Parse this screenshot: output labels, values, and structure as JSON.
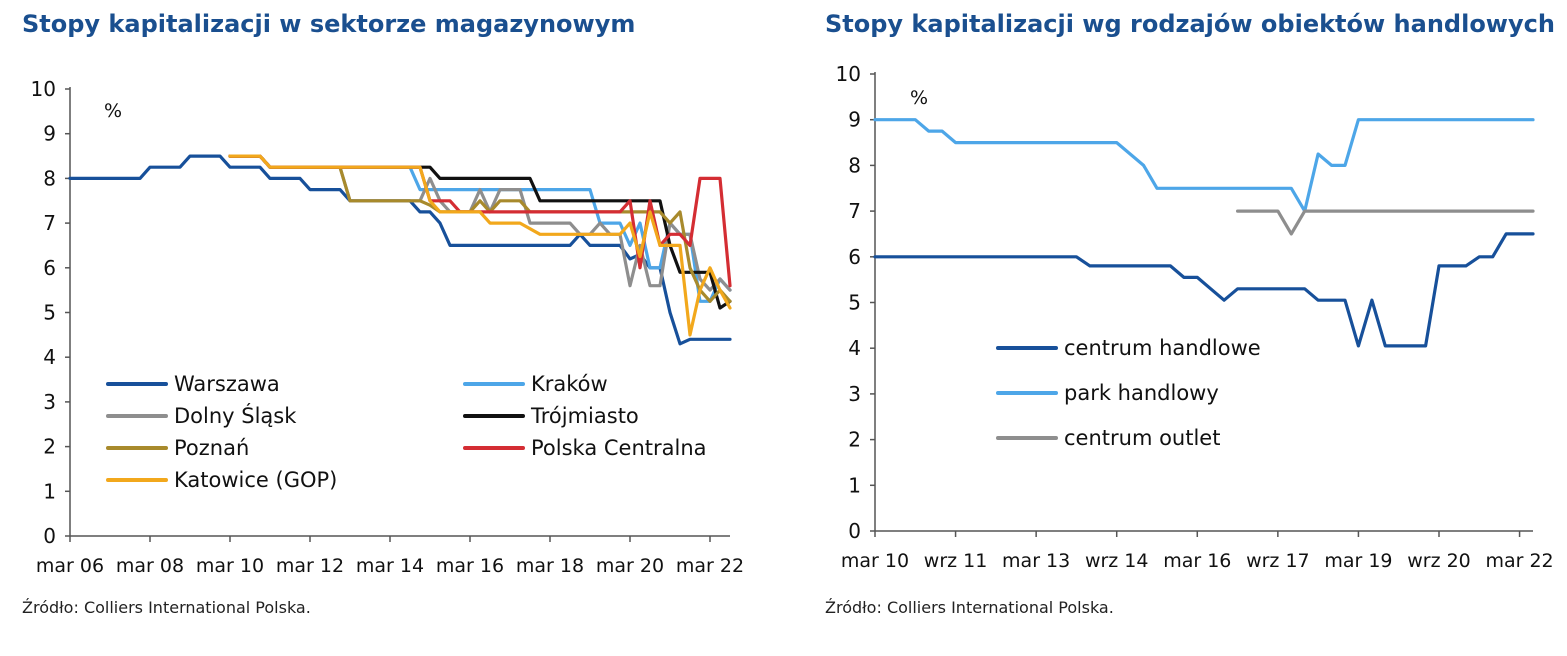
{
  "source_left": "Źródło: Colliers International Polska.",
  "source_right": "Źródło: Colliers International Polska.",
  "chart_data": [
    {
      "type": "line",
      "title": "Stopy kapitalizacji w sektorze magazynowym",
      "unit_label": "%",
      "ylim": [
        0,
        10
      ],
      "y_ticks": [
        0,
        1,
        2,
        3,
        4,
        5,
        6,
        7,
        8,
        9,
        10
      ],
      "x_range": [
        2006.0,
        2022.5
      ],
      "x_ticks": [
        2006,
        2008,
        2010,
        2012,
        2014,
        2016,
        2018,
        2020,
        2022
      ],
      "x_tick_labels": [
        "mar 06",
        "mar 08",
        "mar 10",
        "mar 12",
        "mar 14",
        "mar 16",
        "mar 18",
        "mar 20",
        "mar 22"
      ],
      "legend_position": "bottom-left",
      "series": [
        {
          "name": "Warszawa",
          "color": "#17509a",
          "points": [
            [
              2006.0,
              8.0
            ],
            [
              2007.75,
              8.0
            ],
            [
              2008.0,
              8.25
            ],
            [
              2008.75,
              8.25
            ],
            [
              2009.0,
              8.5
            ],
            [
              2009.75,
              8.5
            ],
            [
              2010.0,
              8.25
            ],
            [
              2010.75,
              8.25
            ],
            [
              2011.0,
              8.0
            ],
            [
              2011.75,
              8.0
            ],
            [
              2012.0,
              7.75
            ],
            [
              2012.75,
              7.75
            ],
            [
              2013.0,
              7.5
            ],
            [
              2014.5,
              7.5
            ],
            [
              2014.75,
              7.25
            ],
            [
              2015.0,
              7.25
            ],
            [
              2015.25,
              7.0
            ],
            [
              2015.5,
              6.5
            ],
            [
              2018.5,
              6.5
            ],
            [
              2018.75,
              6.75
            ],
            [
              2019.0,
              6.5
            ],
            [
              2019.75,
              6.5
            ],
            [
              2020.0,
              6.2
            ],
            [
              2020.25,
              6.3
            ],
            [
              2020.5,
              6.0
            ],
            [
              2020.75,
              6.0
            ],
            [
              2021.0,
              5.0
            ],
            [
              2021.25,
              4.3
            ],
            [
              2021.5,
              4.4
            ],
            [
              2022.5,
              4.4
            ]
          ]
        },
        {
          "name": "Kraków",
          "color": "#4da6e8",
          "points": [
            [
              2010.0,
              8.5
            ],
            [
              2010.75,
              8.5
            ],
            [
              2011.0,
              8.25
            ],
            [
              2014.5,
              8.25
            ],
            [
              2014.75,
              7.75
            ],
            [
              2015.5,
              7.75
            ],
            [
              2015.75,
              7.75
            ],
            [
              2019.0,
              7.75
            ],
            [
              2019.25,
              7.0
            ],
            [
              2019.75,
              7.0
            ],
            [
              2020.0,
              6.5
            ],
            [
              2020.25,
              7.0
            ],
            [
              2020.5,
              6.0
            ],
            [
              2020.75,
              6.0
            ],
            [
              2021.0,
              7.0
            ],
            [
              2021.25,
              6.75
            ],
            [
              2021.5,
              6.75
            ],
            [
              2021.75,
              5.25
            ],
            [
              2022.0,
              5.25
            ],
            [
              2022.25,
              5.75
            ],
            [
              2022.5,
              5.5
            ]
          ]
        },
        {
          "name": "Dolny Śląsk",
          "color": "#8e8e8e",
          "points": [
            [
              2010.0,
              8.5
            ],
            [
              2010.75,
              8.5
            ],
            [
              2011.0,
              8.25
            ],
            [
              2012.75,
              8.25
            ],
            [
              2013.0,
              7.5
            ],
            [
              2014.75,
              7.5
            ],
            [
              2015.0,
              8.0
            ],
            [
              2015.25,
              7.5
            ],
            [
              2015.5,
              7.25
            ],
            [
              2016.0,
              7.25
            ],
            [
              2016.25,
              7.75
            ],
            [
              2016.5,
              7.25
            ],
            [
              2016.75,
              7.75
            ],
            [
              2017.25,
              7.75
            ],
            [
              2017.5,
              7.0
            ],
            [
              2018.5,
              7.0
            ],
            [
              2018.75,
              6.75
            ],
            [
              2019.0,
              6.75
            ],
            [
              2019.25,
              7.0
            ],
            [
              2019.5,
              6.75
            ],
            [
              2019.75,
              6.75
            ],
            [
              2020.0,
              5.6
            ],
            [
              2020.25,
              6.5
            ],
            [
              2020.5,
              5.6
            ],
            [
              2020.75,
              5.6
            ],
            [
              2021.0,
              7.0
            ],
            [
              2021.25,
              6.75
            ],
            [
              2021.5,
              6.75
            ],
            [
              2021.75,
              5.75
            ],
            [
              2022.0,
              5.5
            ],
            [
              2022.25,
              5.75
            ],
            [
              2022.5,
              5.5
            ]
          ]
        },
        {
          "name": "Trójmiasto",
          "color": "#111111",
          "points": [
            [
              2010.0,
              8.5
            ],
            [
              2010.75,
              8.5
            ],
            [
              2011.0,
              8.25
            ],
            [
              2015.0,
              8.25
            ],
            [
              2015.25,
              8.0
            ],
            [
              2017.5,
              8.0
            ],
            [
              2017.75,
              7.5
            ],
            [
              2020.75,
              7.5
            ],
            [
              2021.0,
              6.5
            ],
            [
              2021.25,
              5.9
            ],
            [
              2022.0,
              5.9
            ],
            [
              2022.25,
              5.1
            ],
            [
              2022.5,
              5.25
            ]
          ]
        },
        {
          "name": "Poznań",
          "color": "#a88a2c",
          "points": [
            [
              2010.0,
              8.5
            ],
            [
              2010.75,
              8.5
            ],
            [
              2011.0,
              8.25
            ],
            [
              2012.75,
              8.25
            ],
            [
              2013.0,
              7.5
            ],
            [
              2014.75,
              7.5
            ],
            [
              2015.0,
              7.4
            ],
            [
              2015.25,
              7.25
            ],
            [
              2016.0,
              7.25
            ],
            [
              2016.25,
              7.5
            ],
            [
              2016.5,
              7.25
            ],
            [
              2016.75,
              7.5
            ],
            [
              2017.25,
              7.5
            ],
            [
              2017.5,
              7.25
            ],
            [
              2019.75,
              7.25
            ],
            [
              2020.0,
              7.25
            ],
            [
              2020.25,
              7.25
            ],
            [
              2020.5,
              7.25
            ],
            [
              2020.75,
              7.25
            ],
            [
              2021.0,
              7.0
            ],
            [
              2021.25,
              7.25
            ],
            [
              2021.5,
              6.0
            ],
            [
              2021.75,
              5.5
            ],
            [
              2022.0,
              5.25
            ],
            [
              2022.25,
              5.5
            ],
            [
              2022.5,
              5.25
            ]
          ]
        },
        {
          "name": "Polska Centralna",
          "color": "#d42d33",
          "points": [
            [
              2010.0,
              8.5
            ],
            [
              2010.75,
              8.5
            ],
            [
              2011.0,
              8.25
            ],
            [
              2014.75,
              8.25
            ],
            [
              2015.0,
              7.5
            ],
            [
              2015.5,
              7.5
            ],
            [
              2015.75,
              7.25
            ],
            [
              2019.75,
              7.25
            ],
            [
              2020.0,
              7.5
            ],
            [
              2020.25,
              6.0
            ],
            [
              2020.5,
              7.5
            ],
            [
              2020.75,
              6.5
            ],
            [
              2021.0,
              6.75
            ],
            [
              2021.25,
              6.75
            ],
            [
              2021.5,
              6.5
            ],
            [
              2021.75,
              8.0
            ],
            [
              2022.25,
              8.0
            ],
            [
              2022.5,
              5.6
            ]
          ]
        },
        {
          "name": "Katowice (GOP)",
          "color": "#f2a81c",
          "points": [
            [
              2010.0,
              8.5
            ],
            [
              2010.75,
              8.5
            ],
            [
              2011.0,
              8.25
            ],
            [
              2014.75,
              8.25
            ],
            [
              2015.0,
              7.5
            ],
            [
              2015.25,
              7.25
            ],
            [
              2016.25,
              7.25
            ],
            [
              2016.5,
              7.0
            ],
            [
              2017.25,
              7.0
            ],
            [
              2017.75,
              6.75
            ],
            [
              2019.0,
              6.75
            ],
            [
              2019.75,
              6.75
            ],
            [
              2020.0,
              7.0
            ],
            [
              2020.25,
              6.25
            ],
            [
              2020.5,
              7.25
            ],
            [
              2020.75,
              6.5
            ],
            [
              2021.0,
              6.5
            ],
            [
              2021.25,
              6.5
            ],
            [
              2021.5,
              4.5
            ],
            [
              2021.75,
              5.5
            ],
            [
              2022.0,
              6.0
            ],
            [
              2022.25,
              5.5
            ],
            [
              2022.5,
              5.1
            ]
          ]
        }
      ]
    },
    {
      "type": "line",
      "title": "Stopy kapitalizacji wg rodzajów obiektów handlowych",
      "unit_label": "%",
      "ylim": [
        0,
        10
      ],
      "y_ticks": [
        0,
        1,
        2,
        3,
        4,
        5,
        6,
        7,
        8,
        9,
        10
      ],
      "x_range": [
        2010.0,
        2022.25
      ],
      "x_ticks": [
        2010.0,
        2011.5,
        2013.0,
        2014.5,
        2016.0,
        2017.5,
        2019.0,
        2020.5,
        2022.0
      ],
      "x_tick_labels": [
        "mar 10",
        "wrz 11",
        "mar 13",
        "wrz 14",
        "mar 16",
        "wrz 17",
        "mar 19",
        "wrz 20",
        "mar 22"
      ],
      "legend_position": "center-left",
      "series": [
        {
          "name": "centrum handlowe",
          "color": "#17509a",
          "points": [
            [
              2010.0,
              6.0
            ],
            [
              2013.75,
              6.0
            ],
            [
              2014.0,
              5.8
            ],
            [
              2015.5,
              5.8
            ],
            [
              2015.75,
              5.55
            ],
            [
              2016.0,
              5.55
            ],
            [
              2016.25,
              5.3
            ],
            [
              2016.5,
              5.05
            ],
            [
              2016.75,
              5.3
            ],
            [
              2018.0,
              5.3
            ],
            [
              2018.25,
              5.05
            ],
            [
              2018.75,
              5.05
            ],
            [
              2019.0,
              4.05
            ],
            [
              2019.25,
              5.05
            ],
            [
              2019.5,
              4.05
            ],
            [
              2020.25,
              4.05
            ],
            [
              2020.5,
              5.8
            ],
            [
              2021.0,
              5.8
            ],
            [
              2021.25,
              6.0
            ],
            [
              2021.5,
              6.0
            ],
            [
              2021.75,
              6.5
            ],
            [
              2022.25,
              6.5
            ]
          ]
        },
        {
          "name": "park handlowy",
          "color": "#4da6e8",
          "points": [
            [
              2010.0,
              9.0
            ],
            [
              2010.75,
              9.0
            ],
            [
              2011.0,
              8.75
            ],
            [
              2011.25,
              8.75
            ],
            [
              2011.5,
              8.5
            ],
            [
              2014.5,
              8.5
            ],
            [
              2015.0,
              8.0
            ],
            [
              2015.25,
              7.5
            ],
            [
              2017.75,
              7.5
            ],
            [
              2018.0,
              7.0
            ],
            [
              2018.25,
              8.25
            ],
            [
              2018.5,
              8.0
            ],
            [
              2018.75,
              8.0
            ],
            [
              2019.0,
              9.0
            ],
            [
              2022.25,
              9.0
            ]
          ]
        },
        {
          "name": "centrum outlet",
          "color": "#8e8e8e",
          "points": [
            [
              2016.75,
              7.0
            ],
            [
              2017.5,
              7.0
            ],
            [
              2017.75,
              6.5
            ],
            [
              2018.0,
              7.0
            ],
            [
              2022.25,
              7.0
            ]
          ]
        }
      ]
    }
  ]
}
